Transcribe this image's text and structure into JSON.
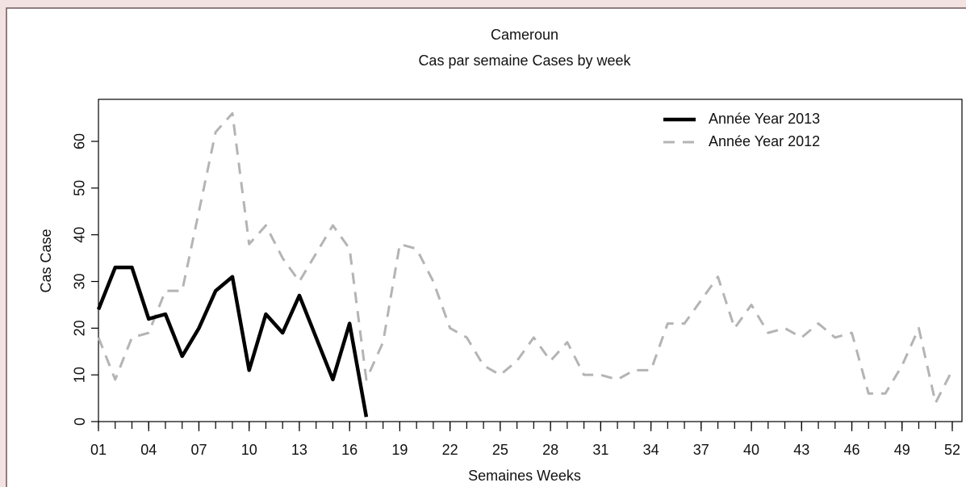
{
  "chart_data": {
    "type": "line",
    "title": "Cameroun",
    "subtitle": "Cas par semaine Cases by week",
    "x_label": "Semaines Weeks",
    "y_label": "Cas Case",
    "x": [
      1,
      2,
      3,
      4,
      5,
      6,
      7,
      8,
      9,
      10,
      11,
      12,
      13,
      14,
      15,
      16,
      17,
      18,
      19,
      20,
      21,
      22,
      23,
      24,
      25,
      26,
      27,
      28,
      29,
      30,
      31,
      32,
      33,
      34,
      35,
      36,
      37,
      38,
      39,
      40,
      41,
      42,
      43,
      44,
      45,
      46,
      47,
      48,
      49,
      50,
      51,
      52
    ],
    "series": [
      {
        "name": "Année Year 2013",
        "color": "#000000",
        "style": "solid",
        "values": [
          24,
          33,
          33,
          22,
          23,
          14,
          20,
          28,
          31,
          11,
          23,
          19,
          27,
          18,
          9,
          21,
          1,
          null,
          null,
          null,
          null,
          null,
          null,
          null,
          null,
          null,
          null,
          null,
          null,
          null,
          null,
          null,
          null,
          null,
          null,
          null,
          null,
          null,
          null,
          null,
          null,
          null,
          null,
          null,
          null,
          null,
          null,
          null,
          null,
          null,
          null,
          null
        ]
      },
      {
        "name": "Année Year 2012",
        "color": "#b4b4b4",
        "style": "dashed",
        "values": [
          18,
          9,
          18,
          19,
          28,
          28,
          45,
          62,
          66,
          38,
          42,
          35,
          30,
          36,
          42,
          37,
          9,
          17,
          38,
          37,
          30,
          20,
          18,
          12,
          10,
          13,
          18,
          13,
          17,
          10,
          10,
          9,
          11,
          11,
          21,
          21,
          26,
          31,
          20,
          25,
          19,
          20,
          18,
          21,
          18,
          19,
          6,
          6,
          12,
          20,
          4,
          11
        ]
      }
    ],
    "xlim": [
      1,
      52
    ],
    "ylim": [
      0,
      69
    ],
    "xticks": [
      {
        "value": 1,
        "label": "01"
      },
      {
        "value": 4,
        "label": "04"
      },
      {
        "value": 7,
        "label": "07"
      },
      10,
      13,
      16,
      19,
      22,
      25,
      28,
      31,
      34,
      37,
      40,
      43,
      46,
      49,
      52
    ],
    "yticks": [
      0,
      10,
      20,
      30,
      40,
      50,
      60
    ],
    "legend": "top-right"
  }
}
